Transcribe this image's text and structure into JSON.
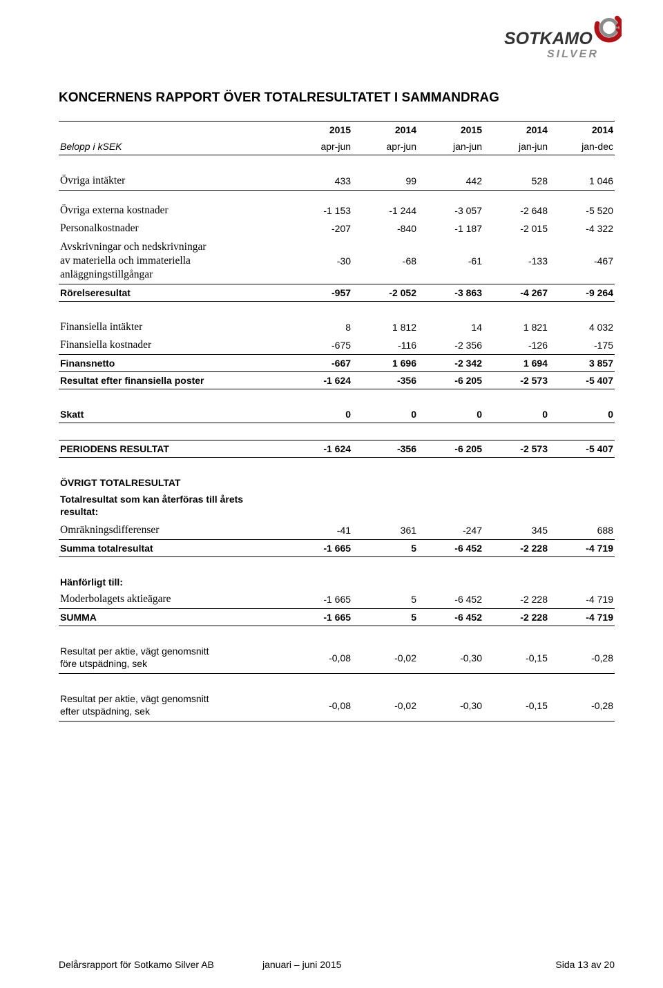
{
  "logo": {
    "text_main": "SOTKAMO",
    "text_sub": "SILVER",
    "ring_outer": "#b01117",
    "ring_inner": "#7a7a7a",
    "text_color": "#333333",
    "sub_color": "#888888"
  },
  "title": "KONCERNENS RAPPORT ÖVER TOTALRESULTATET I SAMMANDRAG",
  "columns": {
    "label_header": "Belopp i kSEK",
    "years": [
      "2015",
      "2014",
      "2015",
      "2014",
      "2014"
    ],
    "periods": [
      "apr-jun",
      "apr-jun",
      "jan-jun",
      "jan-jun",
      "jan-dec"
    ]
  },
  "rows": {
    "ovriga_intakter": {
      "label": "Övriga intäkter",
      "v": [
        "433",
        "99",
        "442",
        "528",
        "1 046"
      ],
      "serif": true
    },
    "ovriga_externa": {
      "label": "Övriga externa kostnader",
      "v": [
        "-1 153",
        "-1 244",
        "-3 057",
        "-2 648",
        "-5 520"
      ],
      "serif": true
    },
    "personalkostnader": {
      "label": "Personalkostnader",
      "v": [
        "-207",
        "-840",
        "-1 187",
        "-2 015",
        "-4 322"
      ],
      "serif": true
    },
    "avskrivningar": {
      "label": "Avskrivningar och nedskrivningar\nav materiella och immateriella\nanläggningstillgångar",
      "v": [
        "-30",
        "-68",
        "-61",
        "-133",
        "-467"
      ],
      "serif": true
    },
    "rorelseresultat": {
      "label": "Rörelseresultat",
      "v": [
        "-957",
        "-2 052",
        "-3 863",
        "-4 267",
        "-9 264"
      ],
      "bold": true
    },
    "fin_intakter": {
      "label": "Finansiella intäkter",
      "v": [
        "8",
        "1 812",
        "14",
        "1 821",
        "4 032"
      ],
      "serif": true
    },
    "fin_kostnader": {
      "label": "Finansiella kostnader",
      "v": [
        "-675",
        "-116",
        "-2 356",
        "-126",
        "-175"
      ],
      "serif": true
    },
    "finansnetto": {
      "label": "Finansnetto",
      "v": [
        "-667",
        "1 696",
        "-2 342",
        "1 694",
        "3 857"
      ],
      "bold": true
    },
    "resultat_efter_fin": {
      "label": "Resultat efter finansiella poster",
      "v": [
        "-1 624",
        "-356",
        "-6 205",
        "-2 573",
        "-5 407"
      ],
      "bold": true
    },
    "skatt": {
      "label": "Skatt",
      "v": [
        "0",
        "0",
        "0",
        "0",
        "0"
      ],
      "bold": true
    },
    "periodens_resultat": {
      "label": "PERIODENS RESULTAT",
      "v": [
        "-1 624",
        "-356",
        "-6 205",
        "-2 573",
        "-5 407"
      ],
      "bold": true
    },
    "ovrigt_totalresultat_hdr": {
      "label": "ÖVRIGT TOTALRESULTAT"
    },
    "totalresultat_aterforas": {
      "label": "Totalresultat som kan återföras till årets\nresultat:"
    },
    "omrakningsdiff": {
      "label": "Omräkningsdifferenser",
      "v": [
        "-41",
        "361",
        "-247",
        "345",
        "688"
      ],
      "serif": true
    },
    "summa_totalresultat": {
      "label": "Summa totalresultat",
      "v": [
        "-1 665",
        "5",
        "-6 452",
        "-2 228",
        "-4 719"
      ],
      "bold": true
    },
    "hanforligt_hdr": {
      "label": "Hänförligt till:"
    },
    "moderbolagets": {
      "label": "Moderbolagets aktieägare",
      "v": [
        "-1 665",
        "5",
        "-6 452",
        "-2 228",
        "-4 719"
      ],
      "serif": true
    },
    "summa": {
      "label": "SUMMA",
      "v": [
        "-1 665",
        "5",
        "-6 452",
        "-2 228",
        "-4 719"
      ],
      "bold": true
    },
    "resultat_aktie_fore": {
      "label": "Resultat per aktie, vägt genomsnitt\nföre utspädning, sek",
      "v": [
        "-0,08",
        "-0,02",
        "-0,30",
        "-0,15",
        "-0,28"
      ]
    },
    "resultat_aktie_efter": {
      "label": "Resultat per aktie, vägt genomsnitt\nefter utspädning, sek",
      "v": [
        "-0,08",
        "-0,02",
        "-0,30",
        "-0,15",
        "-0,28"
      ]
    }
  },
  "footer": {
    "left": "Delårsrapport för Sotkamo Silver AB",
    "center": "januari – juni 2015",
    "right": "Sida 13 av 20"
  }
}
